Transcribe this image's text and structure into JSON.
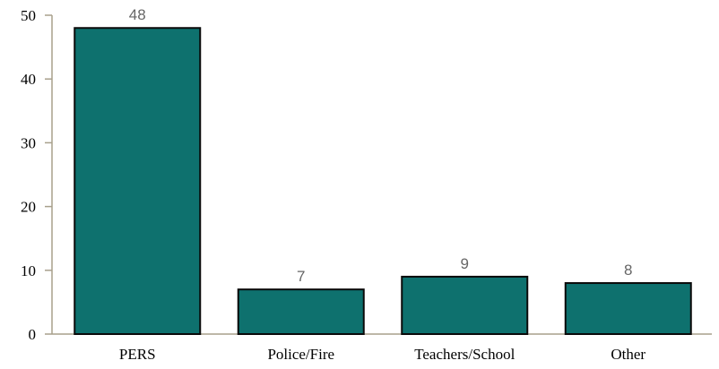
{
  "chart_data": {
    "type": "bar",
    "title": "",
    "xlabel": "",
    "ylabel": "",
    "categories": [
      "PERS",
      "Police/Fire",
      "Teachers/School",
      "Other"
    ],
    "values": [
      48,
      7,
      9,
      8
    ],
    "value_labels": [
      "48",
      "7",
      "9",
      "8"
    ],
    "ylim": [
      0,
      50
    ],
    "yticks": [
      0,
      10,
      20,
      30,
      40,
      50
    ],
    "ytick_labels": [
      "0",
      "10",
      "20",
      "30",
      "40",
      "50"
    ],
    "grid": false,
    "legend": "none",
    "colors": {
      "bar_fill": "#0e716e",
      "bar_stroke": "#0a0a0a",
      "axis": "#a8a08c",
      "value_label": "#666666"
    }
  }
}
